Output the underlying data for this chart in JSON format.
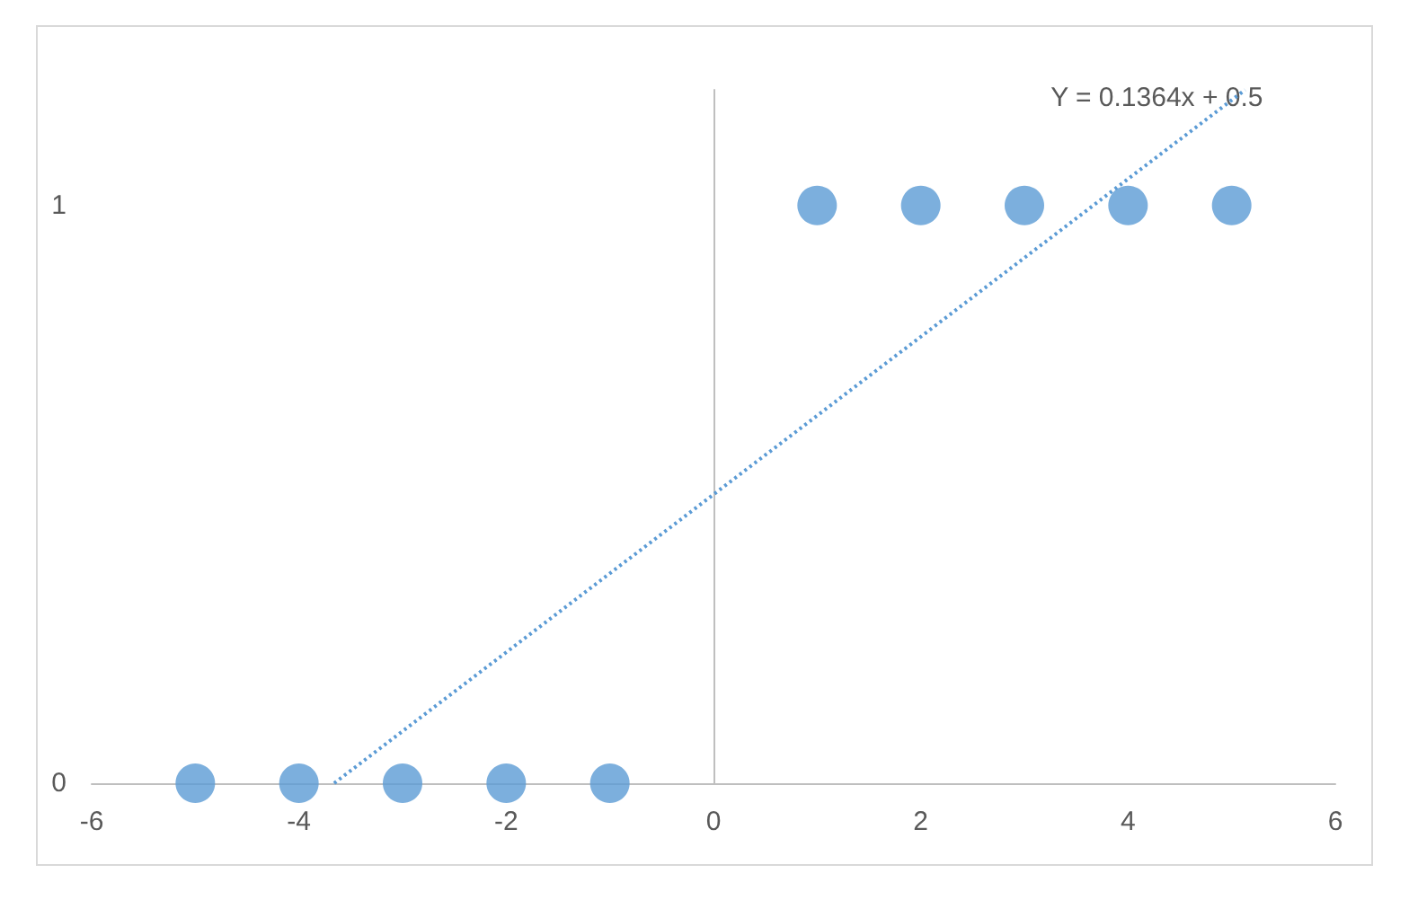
{
  "chart_data": {
    "type": "scatter",
    "x": [
      -5,
      -4,
      -3,
      -2,
      -1,
      1,
      2,
      3,
      4,
      5
    ],
    "series": [
      {
        "color": "#5b9bd5",
        "values": [
          0,
          0,
          0,
          0,
          0,
          1,
          1,
          1,
          1,
          1
        ],
        "marker": "circle"
      },
      {
        "type": "line",
        "color": "#5b9bd5",
        "x": [
          -3.66,
          5.13
        ],
        "values": [
          0,
          1.2
        ],
        "line_style": "dotted",
        "marker": "none"
      }
    ],
    "annotations": [
      "Y = 0.1364x + 0.5"
    ],
    "xlim": [
      -6,
      6
    ],
    "xticks": [
      -6,
      -4,
      -2,
      0,
      2,
      4,
      6
    ],
    "ylim": [
      0,
      1.2
    ],
    "yticks": [
      0,
      1
    ]
  }
}
